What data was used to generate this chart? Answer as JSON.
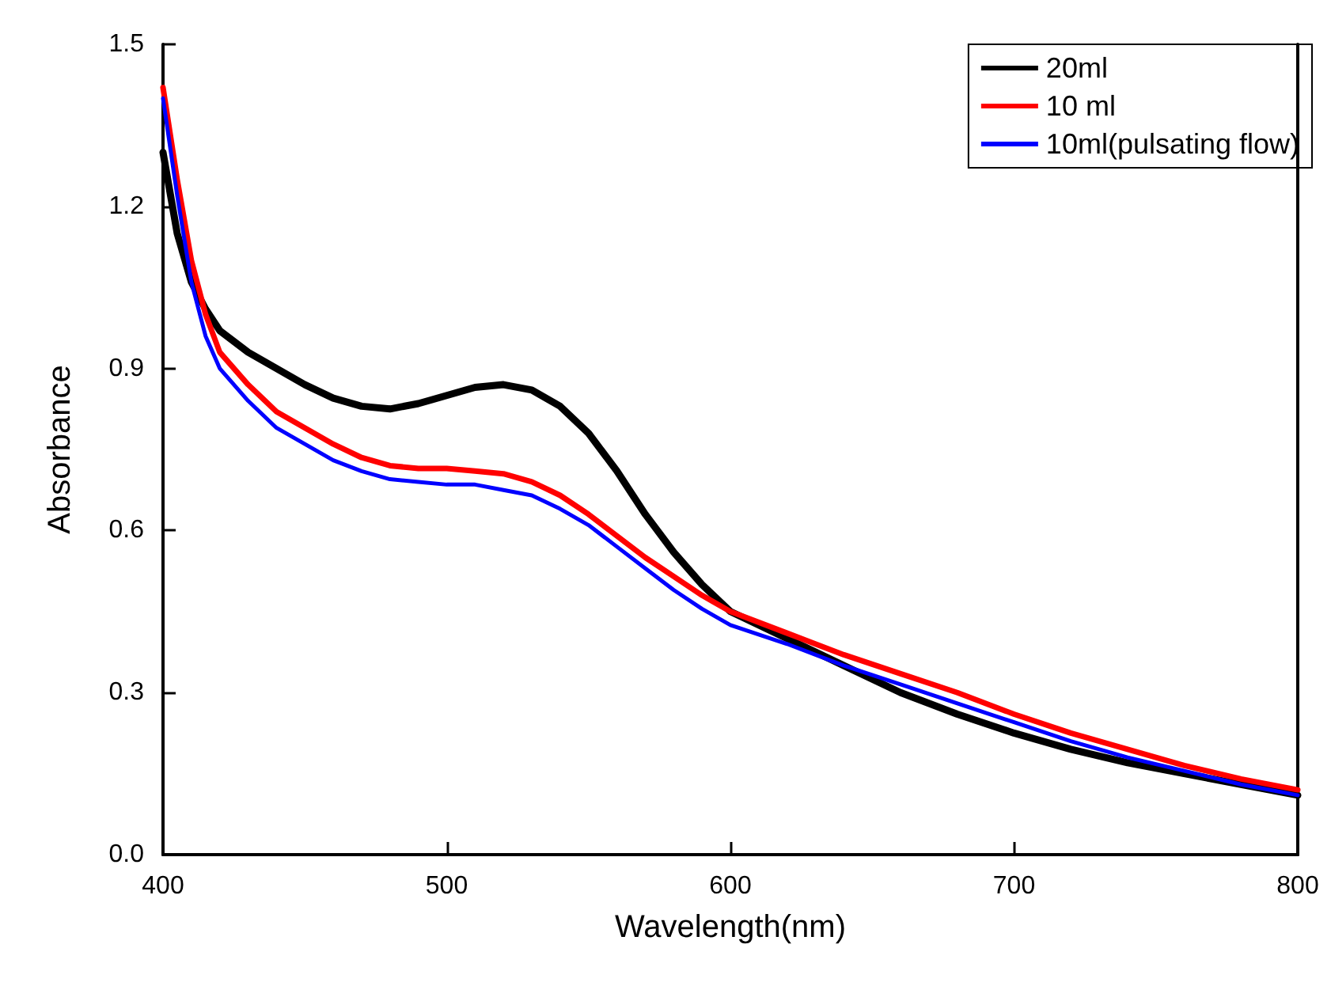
{
  "chart_data": {
    "type": "line",
    "xlabel": "Wavelength(nm)",
    "ylabel": "Absorbance",
    "xlim": [
      400,
      800
    ],
    "xticks": [
      400,
      500,
      600,
      700,
      800
    ],
    "ylim": [
      0,
      1.5
    ],
    "yticks": [
      {
        "value": 0,
        "label": "0.0"
      },
      0.3,
      0.6,
      0.9,
      1.2,
      1.5
    ],
    "grid": false,
    "legend": "top right",
    "marker": "none",
    "line_style": "solid",
    "x": [
      400,
      405,
      410,
      415,
      420,
      430,
      440,
      450,
      460,
      470,
      480,
      490,
      500,
      510,
      520,
      530,
      540,
      550,
      560,
      570,
      580,
      590,
      600,
      620,
      640,
      660,
      680,
      700,
      720,
      740,
      760,
      780,
      800
    ],
    "series": [
      {
        "name": "20ml",
        "color": "#000000",
        "values": [
          1.3,
          1.15,
          1.06,
          1.01,
          0.97,
          0.93,
          0.9,
          0.87,
          0.845,
          0.83,
          0.825,
          0.835,
          0.85,
          0.865,
          0.87,
          0.86,
          0.83,
          0.78,
          0.71,
          0.63,
          0.56,
          0.5,
          0.45,
          0.4,
          0.35,
          0.3,
          0.26,
          0.225,
          0.195,
          0.17,
          0.15,
          0.13,
          0.11
        ]
      },
      {
        "name": "10 ml",
        "color": "#ff0000",
        "values": [
          1.42,
          1.25,
          1.1,
          1.0,
          0.93,
          0.87,
          0.82,
          0.79,
          0.76,
          0.735,
          0.72,
          0.715,
          0.715,
          0.71,
          0.705,
          0.69,
          0.665,
          0.63,
          0.59,
          0.55,
          0.515,
          0.48,
          0.45,
          0.41,
          0.37,
          0.335,
          0.3,
          0.26,
          0.225,
          0.195,
          0.165,
          0.14,
          0.12
        ]
      },
      {
        "name": "10ml(pulsating flow)",
        "color": "#0000ff",
        "values": [
          1.4,
          1.22,
          1.06,
          0.96,
          0.9,
          0.84,
          0.79,
          0.76,
          0.73,
          0.71,
          0.695,
          0.69,
          0.685,
          0.685,
          0.675,
          0.665,
          0.64,
          0.61,
          0.57,
          0.53,
          0.49,
          0.455,
          0.425,
          0.39,
          0.35,
          0.315,
          0.28,
          0.245,
          0.21,
          0.18,
          0.155,
          0.13,
          0.11
        ]
      }
    ]
  }
}
